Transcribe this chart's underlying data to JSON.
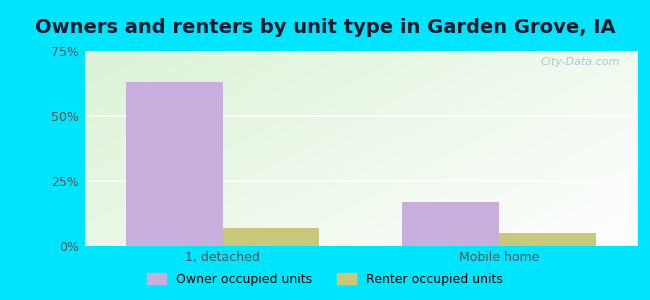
{
  "title": "Owners and renters by unit type in Garden Grove, IA",
  "categories": [
    "1, detached",
    "Mobile home"
  ],
  "owner_values": [
    63,
    17
  ],
  "renter_values": [
    7,
    5
  ],
  "owner_color": "#c8aedd",
  "renter_color": "#c8c87a",
  "outer_bg": "#00e5ff",
  "ylim": [
    0,
    75
  ],
  "yticks": [
    0,
    25,
    50,
    75
  ],
  "ytick_labels": [
    "0%",
    "25%",
    "50%",
    "75%"
  ],
  "title_fontsize": 14,
  "bar_width": 0.35,
  "legend_labels": [
    "Owner occupied units",
    "Renter occupied units"
  ],
  "watermark": "City-Data.com"
}
